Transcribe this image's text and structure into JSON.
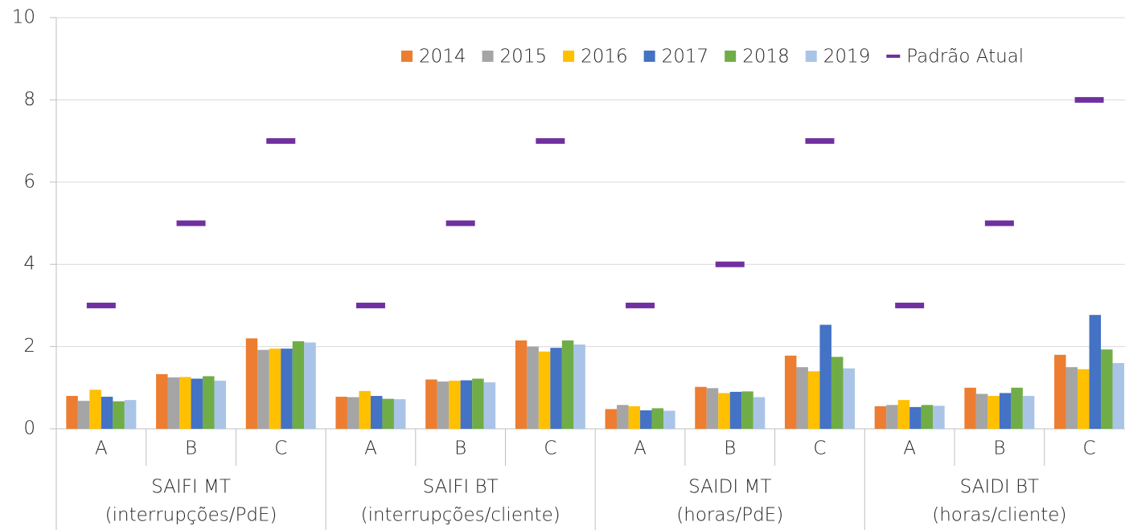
{
  "chart_data": {
    "type": "bar",
    "categories": [
      "A",
      "B",
      "C",
      "A",
      "B",
      "C",
      "A",
      "B",
      "C",
      "A",
      "B",
      "C"
    ],
    "groups": [
      [
        "SAIFI MT",
        "(interrupções/PdE)"
      ],
      [
        "SAIFI BT",
        "(interrupções/cliente)"
      ],
      [
        "SAIDI MT",
        "(horas/PdE)"
      ],
      [
        "SAIDI BT",
        "(horas/cliente)"
      ]
    ],
    "series": [
      {
        "name": "2014",
        "color": "#ED7D31",
        "values": [
          0.8,
          1.33,
          2.2,
          0.78,
          1.2,
          2.15,
          0.48,
          1.02,
          1.78,
          0.55,
          1.0,
          1.8
        ]
      },
      {
        "name": "2015",
        "color": "#A5A5A5",
        "values": [
          0.68,
          1.25,
          1.92,
          0.77,
          1.15,
          2.0,
          0.58,
          0.99,
          1.5,
          0.58,
          0.85,
          1.5
        ]
      },
      {
        "name": "2016",
        "color": "#FFC000",
        "values": [
          0.95,
          1.26,
          1.95,
          0.92,
          1.17,
          1.88,
          0.55,
          0.87,
          1.4,
          0.7,
          0.8,
          1.45
        ]
      },
      {
        "name": "2017",
        "color": "#4472C4",
        "values": [
          0.78,
          1.22,
          1.95,
          0.8,
          1.18,
          1.97,
          0.45,
          0.9,
          2.53,
          0.53,
          0.87,
          2.77
        ]
      },
      {
        "name": "2018",
        "color": "#70AD47",
        "values": [
          0.67,
          1.28,
          2.13,
          0.73,
          1.22,
          2.15,
          0.5,
          0.91,
          1.75,
          0.58,
          1.0,
          1.93
        ]
      },
      {
        "name": "2019",
        "color": "#A9C4E6",
        "values": [
          0.7,
          1.17,
          2.1,
          0.72,
          1.13,
          2.05,
          0.44,
          0.77,
          1.47,
          0.56,
          0.8,
          1.6
        ]
      },
      {
        "name": "Padrão Atual",
        "color": "#7030A0",
        "type": "dash",
        "values": [
          3,
          5,
          7,
          3,
          5,
          7,
          3,
          4,
          7,
          3,
          5,
          8
        ]
      }
    ],
    "ylim": [
      0,
      10
    ],
    "yticks": [
      0,
      2,
      4,
      6,
      8,
      10
    ],
    "grid": true,
    "legend": "top-right"
  }
}
